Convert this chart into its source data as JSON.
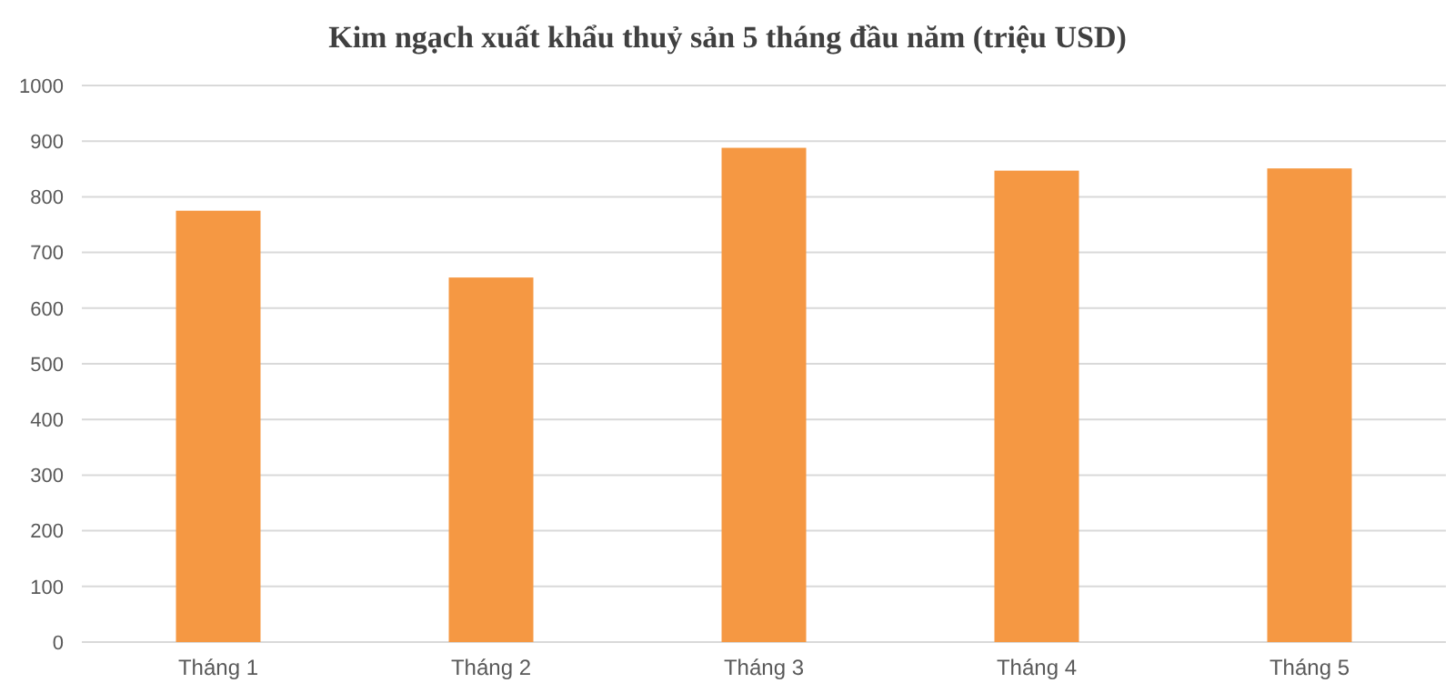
{
  "chart_data": {
    "type": "bar",
    "title": "Kim ngạch xuất khẩu thuỷ sản 5 tháng đầu năm (triệu USD)",
    "categories": [
      "Tháng 1",
      "Tháng 2",
      "Tháng 3",
      "Tháng 4",
      "Tháng 5"
    ],
    "values": [
      775,
      655,
      888,
      847,
      851
    ],
    "color": "#f59843",
    "ylim": [
      0,
      1000
    ],
    "yticks": [
      0,
      100,
      200,
      300,
      400,
      500,
      600,
      700,
      800,
      900,
      1000
    ],
    "grid": "y"
  }
}
